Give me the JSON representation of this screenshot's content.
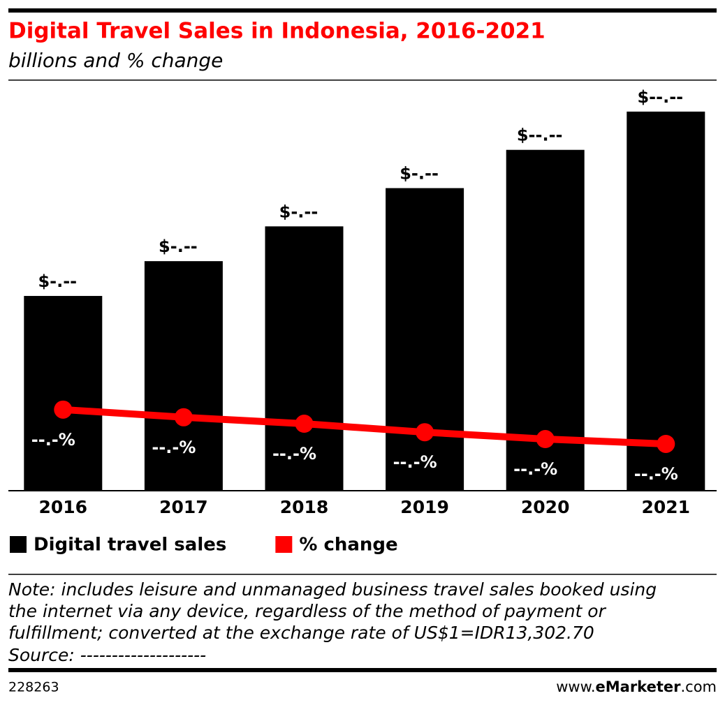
{
  "chart_data": {
    "type": "bar",
    "title": "Digital Travel Sales in Indonesia, 2016-2021",
    "subtitle": "billions and % change",
    "categories": [
      "2016",
      "2017",
      "2018",
      "2019",
      "2020",
      "2021"
    ],
    "series": [
      {
        "name": "Digital travel sales",
        "type": "bar",
        "color": "#000000",
        "values": [
          5.6,
          6.6,
          7.6,
          8.7,
          9.8,
          10.9
        ],
        "value_labels": [
          "$-.--",
          "$-.--",
          "$-.--",
          "$-.--",
          "$--.--",
          "$--.--"
        ]
      },
      {
        "name": "% change",
        "type": "line",
        "axis": "y2",
        "color": "#ff0000",
        "values": [
          20.1,
          18.2,
          16.6,
          14.5,
          12.8,
          11.6
        ],
        "value_labels": [
          "--.-%",
          "--.-%",
          "--.-%",
          "--.-%",
          "--.-%",
          "--.-%"
        ]
      }
    ],
    "ylim": [
      0,
      11.6
    ],
    "y2lim": [
      0,
      100
    ],
    "note": [
      "Note: includes leisure and unmanaged business travel sales booked using",
      "the internet via any device, regardless of the method of payment or",
      "fulfillment; converted at the exchange rate of US$1=IDR13,302.70"
    ],
    "source": "Source: --------------------",
    "chart_id": "228263",
    "brand": [
      "www.",
      "eMarketer",
      ".com"
    ]
  }
}
